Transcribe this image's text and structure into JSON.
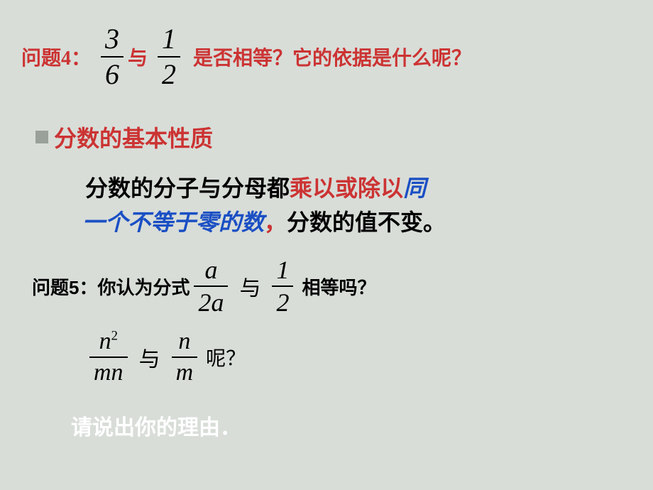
{
  "q4": {
    "label": "问题4：",
    "frac1": {
      "num": "3",
      "den": "6"
    },
    "mid": "与",
    "frac2": {
      "num": "1",
      "den": "2"
    },
    "rest": "是否相等？它的依据是什么呢？"
  },
  "heading": "分数的基本性质",
  "body": {
    "line1_black": "分数的分子与分母都",
    "line1_red": "乘以或除以",
    "line1_blue": "同",
    "line2_blue": "一个不等于零的数",
    "line2_red": "，",
    "line2_black": "分数的值不变。"
  },
  "q5": {
    "label": "问题5：你认为分式",
    "fracA": {
      "num": "a",
      "den": "2a"
    },
    "mid": "与",
    "fracB": {
      "num": "1",
      "den": "2"
    },
    "rest": "相等吗？"
  },
  "q5b": {
    "fracC": {
      "num_base": "n",
      "num_exp": "2",
      "den": "mn"
    },
    "mid": "与",
    "fracD": {
      "num": "n",
      "den": "m"
    },
    "rest": "呢？"
  },
  "footer": "请说出你的理由．",
  "colors": {
    "bg": "#d8ddd8",
    "red": "#cc3333",
    "blue": "#1a4fc4",
    "black": "#000000",
    "white": "#ffffff",
    "bullet": "#9aa09a"
  }
}
